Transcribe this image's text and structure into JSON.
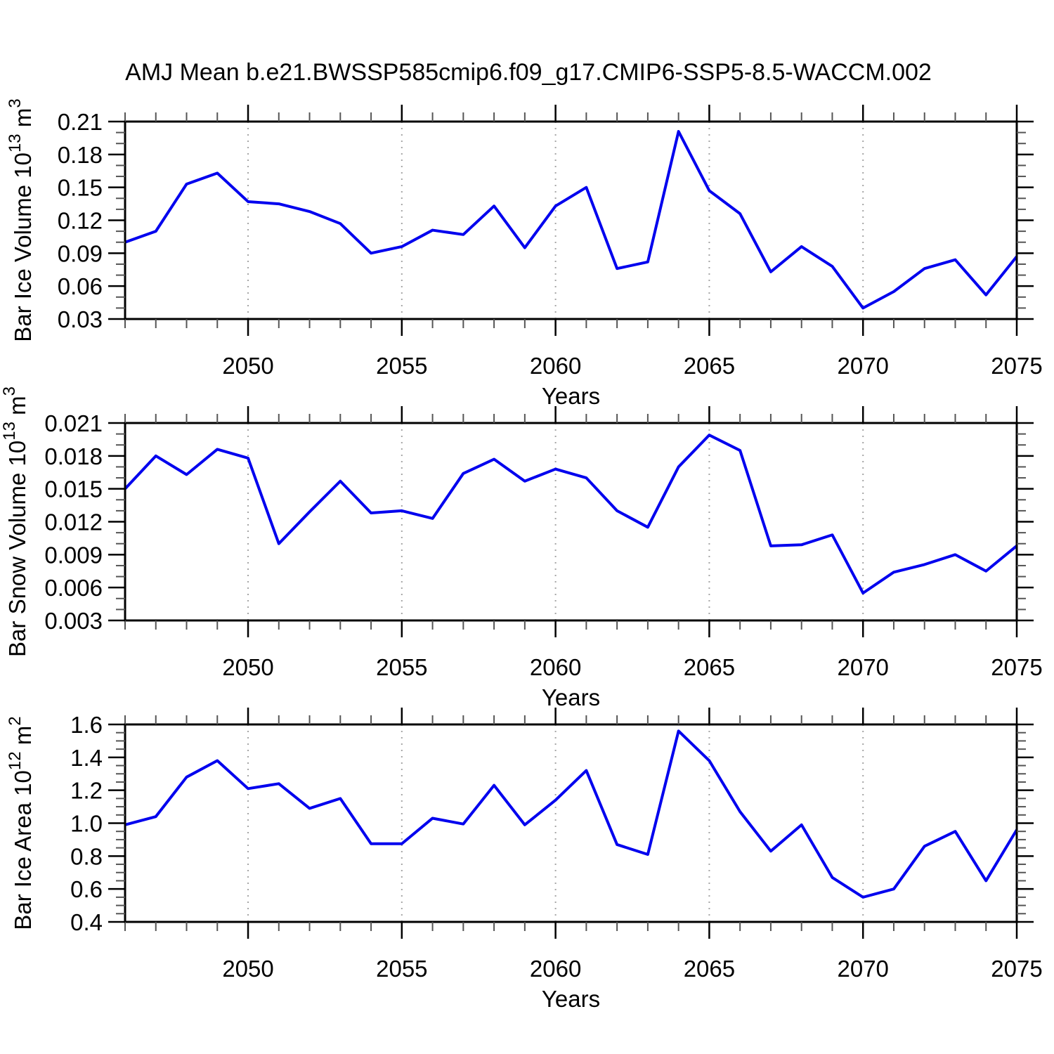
{
  "title": "AMJ Mean b.e21.BWSSP585cmip6.f09_g17.CMIP6-SSP5-8.5-WACCM.002",
  "colors": {
    "line": "#0000EE",
    "frame": "#000000",
    "grid": "#A6A6A6",
    "minor_tick": "#555555",
    "text": "#000000"
  },
  "x_axis": {
    "label": "Years",
    "range": [
      2046,
      2075
    ],
    "years": [
      2046,
      2047,
      2048,
      2049,
      2050,
      2051,
      2052,
      2053,
      2054,
      2055,
      2056,
      2057,
      2058,
      2059,
      2060,
      2061,
      2062,
      2063,
      2064,
      2065,
      2066,
      2067,
      2068,
      2069,
      2070,
      2071,
      2072,
      2073,
      2074,
      2075
    ],
    "ticks": [
      {
        "v": 2050,
        "label": "2050"
      },
      {
        "v": 2055,
        "label": "2055"
      },
      {
        "v": 2060,
        "label": "2060"
      },
      {
        "v": 2065,
        "label": "2065"
      },
      {
        "v": 2070,
        "label": "2070"
      },
      {
        "v": 2075,
        "label": "2075"
      }
    ],
    "gridlines": [
      2050,
      2055,
      2060,
      2065,
      2070
    ]
  },
  "chart_data": [
    {
      "type": "line",
      "name": "bar-ice-volume",
      "ylabel_text": "Bar Ice Volume 10^13 m^3",
      "ylabel": [
        {
          "t": "Bar Ice Volume 10"
        },
        {
          "t": "13",
          "sup": true
        },
        {
          "t": " m"
        },
        {
          "t": "3",
          "sup": true
        }
      ],
      "ylim": [
        0.03,
        0.21
      ],
      "y_minor": 2,
      "yticks": [
        {
          "v": 0.21,
          "label": "0.21"
        },
        {
          "v": 0.18,
          "label": "0.18"
        },
        {
          "v": 0.15,
          "label": "0.15"
        },
        {
          "v": 0.12,
          "label": "0.12"
        },
        {
          "v": 0.09,
          "label": "0.09"
        },
        {
          "v": 0.06,
          "label": "0.06"
        },
        {
          "v": 0.03,
          "label": "0.03"
        }
      ],
      "values": [
        0.1,
        0.11,
        0.153,
        0.163,
        0.137,
        0.135,
        0.128,
        0.117,
        0.09,
        0.096,
        0.111,
        0.107,
        0.133,
        0.095,
        0.133,
        0.15,
        0.076,
        0.082,
        0.201,
        0.147,
        0.126,
        0.073,
        0.096,
        0.078,
        0.04,
        0.055,
        0.076,
        0.084,
        0.052,
        0.087
      ]
    },
    {
      "type": "line",
      "name": "bar-snow-volume",
      "ylabel_text": "Bar Snow Volume 10^13 m^3",
      "ylabel": [
        {
          "t": "Bar Snow Volume 10"
        },
        {
          "t": "13",
          "sup": true
        },
        {
          "t": " m"
        },
        {
          "t": "3",
          "sup": true
        }
      ],
      "ylim": [
        0.003,
        0.021
      ],
      "y_minor": 2,
      "yticks": [
        {
          "v": 0.021,
          "label": "0.021"
        },
        {
          "v": 0.018,
          "label": "0.018"
        },
        {
          "v": 0.015,
          "label": "0.015"
        },
        {
          "v": 0.012,
          "label": "0.012"
        },
        {
          "v": 0.009,
          "label": "0.009"
        },
        {
          "v": 0.006,
          "label": "0.006"
        },
        {
          "v": 0.003,
          "label": "0.003"
        }
      ],
      "values": [
        0.015,
        0.018,
        0.0163,
        0.0186,
        0.0178,
        0.01,
        0.0129,
        0.0157,
        0.0128,
        0.013,
        0.0123,
        0.0164,
        0.0177,
        0.0157,
        0.0168,
        0.016,
        0.013,
        0.0115,
        0.017,
        0.0199,
        0.0185,
        0.0098,
        0.0099,
        0.0108,
        0.0055,
        0.0074,
        0.0081,
        0.009,
        0.0075,
        0.0098
      ]
    },
    {
      "type": "line",
      "name": "bar-ice-area",
      "ylabel_text": "Bar Ice Area 10^12 m^2",
      "ylabel": [
        {
          "t": "Bar Ice Area 10"
        },
        {
          "t": "12",
          "sup": true
        },
        {
          "t": " m"
        },
        {
          "t": "2",
          "sup": true
        }
      ],
      "ylim": [
        0.4,
        1.6
      ],
      "y_minor": 3,
      "yticks": [
        {
          "v": 1.6,
          "label": "1.6"
        },
        {
          "v": 1.4,
          "label": "1.4"
        },
        {
          "v": 1.2,
          "label": "1.2"
        },
        {
          "v": 1.0,
          "label": "1.0"
        },
        {
          "v": 0.8,
          "label": "0.8"
        },
        {
          "v": 0.6,
          "label": "0.6"
        },
        {
          "v": 0.4,
          "label": "0.4"
        }
      ],
      "values": [
        0.99,
        1.04,
        1.28,
        1.38,
        1.21,
        1.24,
        1.09,
        1.15,
        0.875,
        0.875,
        1.03,
        0.995,
        1.23,
        0.99,
        1.14,
        1.32,
        0.87,
        0.81,
        1.56,
        1.38,
        1.07,
        0.83,
        0.99,
        0.67,
        0.55,
        0.6,
        0.86,
        0.95,
        0.65,
        0.96
      ]
    }
  ]
}
